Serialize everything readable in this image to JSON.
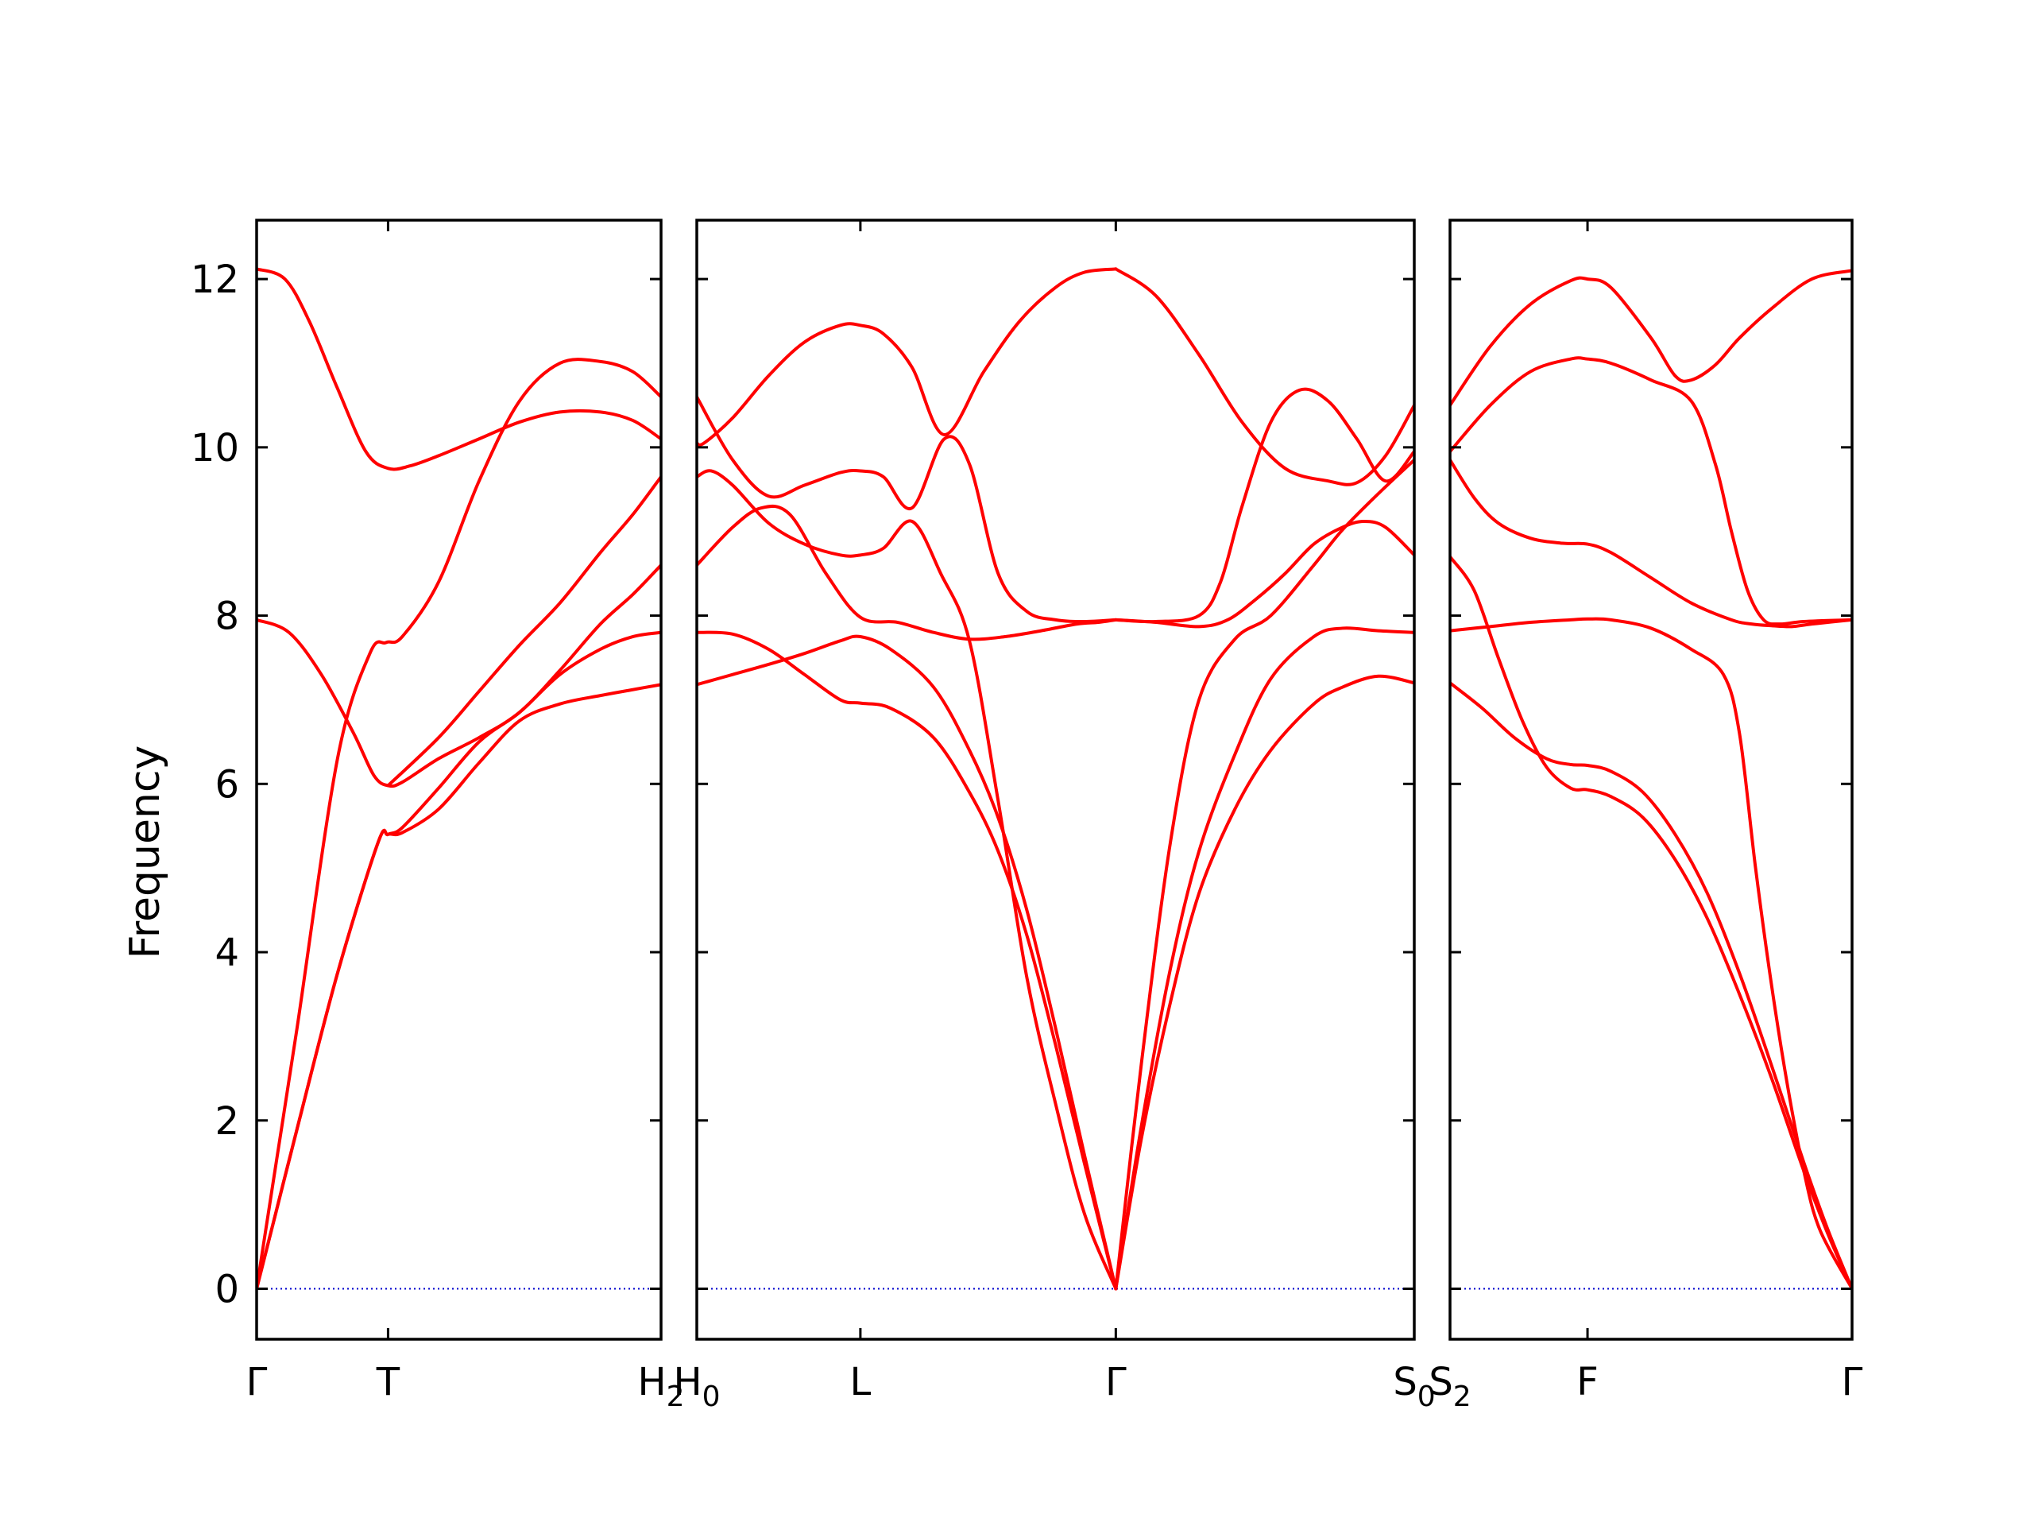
{
  "chart_data": {
    "type": "line",
    "title": "",
    "ylabel": "Frequency",
    "ylim": [
      -0.6,
      12.7
    ],
    "yticks": [
      "0",
      "2",
      "4",
      "6",
      "8",
      "10",
      "12"
    ],
    "line_color": "#ff0000",
    "zero_line_color": "#0000cc",
    "grid": false,
    "panels": [
      {
        "name": "Γ–T–H2",
        "x_labels": [
          {
            "text": "Γ",
            "sub": ""
          },
          {
            "text": "T",
            "sub": ""
          },
          {
            "text": "H",
            "sub": "2"
          }
        ],
        "x_label_positions": [
          0,
          0.325,
          1
        ],
        "series": [
          {
            "name": "",
            "x": [
              0,
              0.05,
              0.1,
              0.2,
              0.3,
              0.325,
              0.36,
              0.45,
              0.55,
              0.65,
              0.75,
              0.85,
              0.93,
              1.0
            ],
            "y": [
              0,
              0.95,
              1.9,
              3.75,
              5.3,
              5.4,
              5.42,
              5.7,
              6.25,
              6.75,
              6.95,
              7.05,
              7.12,
              7.18
            ]
          },
          {
            "name": "",
            "x": [
              0,
              0.05,
              0.1,
              0.2,
              0.3,
              0.325,
              0.36,
              0.45,
              0.55,
              0.65,
              0.75,
              0.85,
              0.93,
              1.0
            ],
            "y": [
              0,
              0.95,
              1.9,
              3.75,
              5.3,
              5.4,
              5.48,
              5.95,
              6.5,
              6.85,
              7.3,
              7.6,
              7.75,
              7.8
            ]
          },
          {
            "name": "",
            "x": [
              0,
              0.08,
              0.16,
              0.24,
              0.29,
              0.325,
              0.36,
              0.45,
              0.55,
              0.65,
              0.75,
              0.85,
              0.93,
              1.0
            ],
            "y": [
              7.95,
              7.8,
              7.3,
              6.6,
              6.1,
              5.98,
              6.02,
              6.3,
              6.55,
              6.85,
              7.35,
              7.9,
              8.25,
              8.6
            ]
          },
          {
            "name": "",
            "x": [
              0,
              0.05,
              0.1,
              0.2,
              0.28,
              0.32,
              0.36,
              0.45,
              0.55,
              0.65,
              0.75,
              0.85,
              0.93,
              1.0
            ],
            "y": [
              0,
              1.55,
              3.1,
              6.3,
              7.55,
              7.68,
              7.75,
              8.4,
              9.6,
              10.55,
              11.0,
              11.02,
              10.9,
              10.6
            ]
          },
          {
            "name": "",
            "x": [
              0,
              0.07,
              0.13,
              0.2,
              0.27,
              0.325,
              0.38,
              0.45,
              0.55,
              0.65,
              0.75,
              0.85,
              0.93,
              1.0
            ],
            "y": [
              12.12,
              12.0,
              11.5,
              10.7,
              9.95,
              9.75,
              9.78,
              9.9,
              10.1,
              10.3,
              10.42,
              10.42,
              10.32,
              10.1
            ]
          },
          {
            "name": "",
            "x": [
              0.325,
              0.45,
              0.55,
              0.65,
              0.75,
              0.85,
              0.93,
              1.0
            ],
            "y": [
              5.98,
              6.55,
              7.1,
              7.65,
              8.15,
              8.75,
              9.2,
              9.65
            ]
          }
        ]
      },
      {
        "name": "H0–L–Γ–S0",
        "x_labels": [
          {
            "text": "H",
            "sub": "0"
          },
          {
            "text": "L",
            "sub": ""
          },
          {
            "text": "Γ",
            "sub": ""
          },
          {
            "text": "S",
            "sub": "0"
          }
        ],
        "x_label_positions": [
          0,
          0.228,
          0.584,
          1
        ],
        "series": [
          {
            "name": "",
            "x": [
              0,
              0.05,
              0.1,
              0.15,
              0.2,
              0.228,
              0.27,
              0.33,
              0.38,
              0.42,
              0.46,
              0.5,
              0.54,
              0.584
            ],
            "y": [
              7.18,
              7.3,
              7.42,
              7.55,
              7.7,
              7.75,
              7.6,
              7.15,
              6.4,
              5.6,
              4.5,
              3.1,
              1.6,
              0
            ]
          },
          {
            "name": "",
            "x": [
              0,
              0.05,
              0.1,
              0.15,
              0.2,
              0.228,
              0.27,
              0.33,
              0.38,
              0.42,
              0.46,
              0.5,
              0.54,
              0.584
            ],
            "y": [
              7.8,
              7.78,
              7.6,
              7.3,
              7.0,
              6.96,
              6.9,
              6.55,
              5.9,
              5.2,
              4.2,
              2.9,
              1.5,
              0
            ]
          },
          {
            "name": "",
            "x": [
              0,
              0.05,
              0.09,
              0.13,
              0.18,
              0.228,
              0.28,
              0.33,
              0.38,
              0.43,
              0.48,
              0.53,
              0.56,
              0.584
            ],
            "y": [
              8.6,
              9.05,
              9.28,
              9.2,
              8.5,
              7.98,
              7.92,
              7.8,
              7.72,
              7.75,
              7.82,
              7.9,
              7.92,
              7.95
            ]
          },
          {
            "name": "",
            "x": [
              0,
              0.02,
              0.05,
              0.1,
              0.15,
              0.2,
              0.228,
              0.26,
              0.3,
              0.34,
              0.38,
              0.42,
              0.46,
              0.5,
              0.54,
              0.584
            ],
            "y": [
              9.65,
              9.72,
              9.55,
              9.1,
              8.85,
              8.72,
              8.72,
              8.8,
              9.12,
              8.5,
              7.7,
              5.8,
              3.7,
              2.2,
              0.9,
              0
            ]
          },
          {
            "name": "",
            "x": [
              0,
              0.05,
              0.1,
              0.15,
              0.2,
              0.228,
              0.26,
              0.3,
              0.345,
              0.38,
              0.42,
              0.46,
              0.5,
              0.54,
              0.584
            ],
            "y": [
              10.6,
              9.85,
              9.42,
              9.55,
              9.7,
              9.72,
              9.65,
              9.28,
              10.1,
              9.8,
              8.5,
              8.05,
              7.95,
              7.93,
              7.95
            ]
          },
          {
            "name": "",
            "x": [
              0,
              0.01,
              0.05,
              0.1,
              0.15,
              0.2,
              0.228,
              0.26,
              0.3,
              0.345,
              0.4,
              0.45,
              0.5,
              0.54,
              0.584
            ],
            "y": [
              10.05,
              10.05,
              10.35,
              10.85,
              11.25,
              11.45,
              11.45,
              11.35,
              10.95,
              10.15,
              10.9,
              11.5,
              11.9,
              12.08,
              12.12
            ]
          },
          {
            "name": "",
            "x": [
              0.584,
              0.62,
              0.66,
              0.7,
              0.75,
              0.8,
              0.86,
              0.9,
              0.95,
              1.0
            ],
            "y": [
              0,
              1.8,
              3.4,
              4.7,
              5.7,
              6.4,
              6.95,
              7.15,
              7.28,
              7.2
            ]
          },
          {
            "name": "",
            "x": [
              0.584,
              0.62,
              0.66,
              0.7,
              0.75,
              0.8,
              0.86,
              0.9,
              0.95,
              1.0
            ],
            "y": [
              0,
              1.95,
              3.8,
              5.2,
              6.35,
              7.25,
              7.75,
              7.85,
              7.82,
              7.8
            ]
          },
          {
            "name": "",
            "x": [
              0.584,
              0.62,
              0.66,
              0.7,
              0.75,
              0.8,
              0.86,
              0.9,
              0.95,
              1.0
            ],
            "y": [
              0,
              2.7,
              5.3,
              7.0,
              7.72,
              8.0,
              8.6,
              9.02,
              9.45,
              9.85
            ]
          },
          {
            "name": "",
            "x": [
              0.584,
              0.64,
              0.7,
              0.74,
              0.78,
              0.82,
              0.86,
              0.9,
              0.93,
              0.96,
              1.0
            ],
            "y": [
              7.95,
              7.92,
              7.87,
              7.95,
              8.2,
              8.5,
              8.85,
              9.05,
              9.12,
              9.05,
              8.72
            ]
          },
          {
            "name": "",
            "x": [
              0.584,
              0.64,
              0.7,
              0.73,
              0.76,
              0.8,
              0.84,
              0.88,
              0.92,
              0.96,
              1.0
            ],
            "y": [
              7.95,
              7.93,
              8.0,
              8.4,
              9.3,
              10.3,
              10.68,
              10.55,
              10.1,
              9.6,
              9.95
            ]
          },
          {
            "name": "",
            "x": [
              0.584,
              0.64,
              0.7,
              0.76,
              0.82,
              0.88,
              0.92,
              0.96,
              1.0
            ],
            "y": [
              12.12,
              11.8,
              11.1,
              10.3,
              9.75,
              9.6,
              9.58,
              9.9,
              10.5
            ]
          }
        ]
      },
      {
        "name": "S2–F–Γ",
        "x_labels": [
          {
            "text": "S",
            "sub": "2"
          },
          {
            "text": "F",
            "sub": ""
          },
          {
            "text": "Γ",
            "sub": ""
          }
        ],
        "x_label_positions": [
          0,
          0.342,
          1
        ],
        "series": [
          {
            "name": "",
            "x": [
              0,
              0.08,
              0.16,
              0.24,
              0.3,
              0.342,
              0.4,
              0.48,
              0.56,
              0.64,
              0.72,
              0.8,
              0.88,
              0.94,
              1.0
            ],
            "y": [
              7.2,
              6.9,
              6.55,
              6.3,
              6.23,
              6.22,
              6.15,
              5.9,
              5.4,
              4.7,
              3.75,
              2.65,
              1.5,
              0.7,
              0
            ]
          },
          {
            "name": "",
            "x": [
              0,
              0.06,
              0.12,
              0.18,
              0.24,
              0.3,
              0.342,
              0.4,
              0.48,
              0.56,
              0.64,
              0.72,
              0.8,
              0.88,
              0.94,
              1.0
            ],
            "y": [
              8.7,
              8.3,
              7.5,
              6.75,
              6.2,
              5.95,
              5.93,
              5.85,
              5.6,
              5.1,
              4.4,
              3.5,
              2.5,
              1.4,
              0.65,
              0
            ]
          },
          {
            "name": "",
            "x": [
              0,
              0.1,
              0.2,
              0.3,
              0.342,
              0.4,
              0.5,
              0.6,
              0.68,
              0.72,
              0.76,
              0.8,
              0.84,
              0.88,
              0.92,
              1.0
            ],
            "y": [
              7.82,
              7.87,
              7.92,
              7.95,
              7.96,
              7.95,
              7.85,
              7.6,
              7.3,
              6.6,
              5.0,
              3.6,
              2.4,
              1.4,
              0.7,
              0
            ]
          },
          {
            "name": "",
            "x": [
              0,
              0.06,
              0.12,
              0.2,
              0.28,
              0.342,
              0.4,
              0.5,
              0.6,
              0.7,
              0.75,
              0.8,
              0.85,
              0.9,
              1.0
            ],
            "y": [
              9.85,
              9.4,
              9.1,
              8.92,
              8.86,
              8.85,
              8.75,
              8.45,
              8.15,
              7.95,
              7.9,
              7.88,
              7.87,
              7.9,
              7.95
            ]
          },
          {
            "name": "",
            "x": [
              0,
              0.1,
              0.2,
              0.3,
              0.342,
              0.4,
              0.5,
              0.6,
              0.66,
              0.7,
              0.74,
              0.78,
              0.82,
              0.88,
              1.0
            ],
            "y": [
              9.95,
              10.5,
              10.9,
              11.05,
              11.05,
              11.0,
              10.8,
              10.55,
              9.8,
              9.0,
              8.3,
              7.95,
              7.9,
              7.93,
              7.95
            ]
          },
          {
            "name": "",
            "x": [
              0,
              0.1,
              0.2,
              0.3,
              0.342,
              0.4,
              0.5,
              0.56,
              0.6,
              0.66,
              0.72,
              0.8,
              0.9,
              1.0
            ],
            "y": [
              10.5,
              11.2,
              11.7,
              11.98,
              12.0,
              11.9,
              11.3,
              10.85,
              10.8,
              10.98,
              11.3,
              11.65,
              12.0,
              12.1
            ]
          }
        ]
      }
    ]
  }
}
